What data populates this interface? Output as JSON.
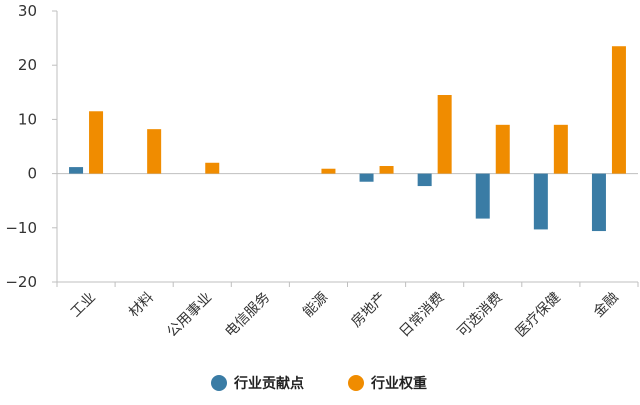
{
  "chart_data": {
    "type": "bar",
    "categories": [
      "工业",
      "材料",
      "公用事业",
      "电信服务",
      "能源",
      "房地产",
      "日常消费",
      "可选消费",
      "医疗保健",
      "金融"
    ],
    "series": [
      {
        "name": "行业贡献点",
        "color": "#3a7ca5",
        "values": [
          1.2,
          0.0,
          0.0,
          0.0,
          0.0,
          -1.5,
          -2.3,
          -8.3,
          -10.3,
          -10.6
        ]
      },
      {
        "name": "行业权重",
        "color": "#f08c00",
        "values": [
          11.5,
          8.2,
          2.0,
          0.0,
          0.9,
          1.4,
          14.5,
          9.0,
          9.0,
          23.5
        ]
      }
    ],
    "ylim": [
      -20,
      30
    ],
    "yticks": [
      "30",
      "20",
      "10",
      "0",
      "−10",
      "−20"
    ],
    "ytick_values": [
      30,
      20,
      10,
      0,
      -10,
      -20
    ],
    "grid": false,
    "legend_position": "bottom-center",
    "title": "",
    "xlabel": "",
    "ylabel": ""
  }
}
